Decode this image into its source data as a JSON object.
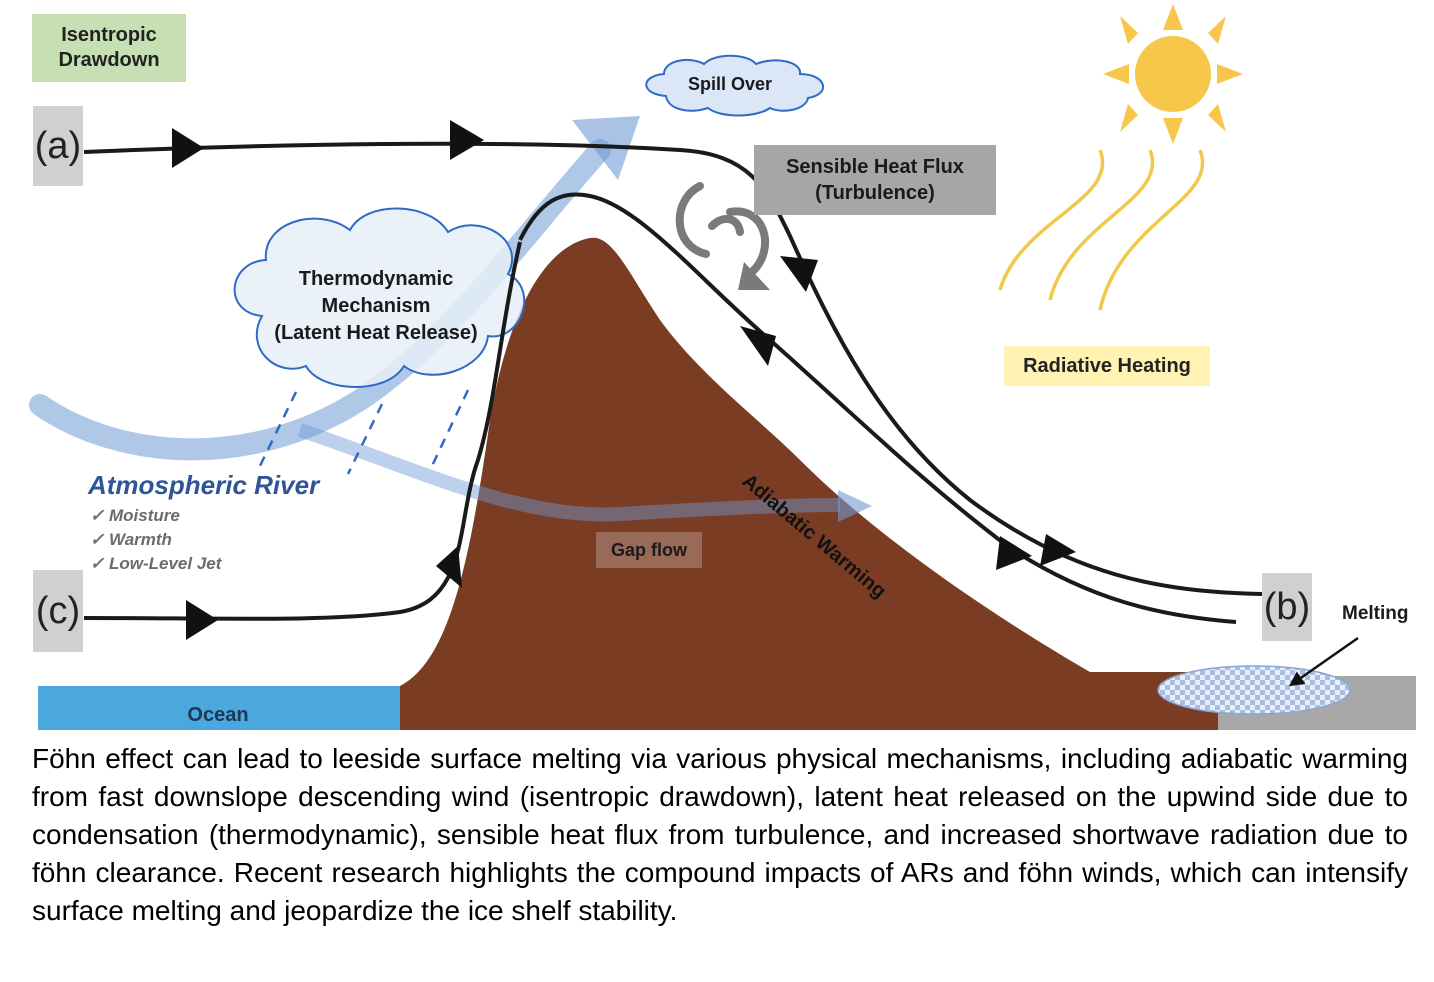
{
  "labels": {
    "isentropic": "Isentropic\nDrawdown",
    "spill_over": "Spill Over",
    "sensible": "Sensible Heat Flux\n(Turbulence)",
    "thermo": "Thermodynamic\nMechanism\n(Latent Heat Release)",
    "radiative": "Radiative Heating",
    "ar": "Atmospheric River",
    "ar_features": [
      "✓ Moisture",
      "✓ Warmth",
      "✓ Low-Level Jet"
    ],
    "adiabatic": "Adiabatic Warming",
    "gap_flow": "Gap flow",
    "melting": "Melting",
    "ocean": "Ocean",
    "letter_a": "(a)",
    "letter_b": "(b)",
    "letter_c": "(c)"
  },
  "caption": "Föhn effect can lead to leeside surface melting via various physical mechanisms, including adiabatic warming from fast downslope descending wind (isentropic drawdown), latent heat released on the upwind side due to condensation (thermodynamic), sensible heat flux from turbulence, and increased shortwave radiation due to föhn clearance. Recent research highlights the compound impacts of ARs and föhn winds, which can intensify surface melting and jeopardize the ice shelf stability.",
  "colors": {
    "mountain": "#7b3c24",
    "ocean": "#4aa8de",
    "ice_shelf": "#a8a8a8",
    "ar_arrow": "#6f9ad4",
    "sun": "#f7c64a",
    "flow_line": "#1a1a1a"
  },
  "icons": [
    "sun-icon",
    "heat-wave-icon",
    "turbulence-swirl-icon",
    "cloud-icon",
    "melt-pond-icon"
  ]
}
